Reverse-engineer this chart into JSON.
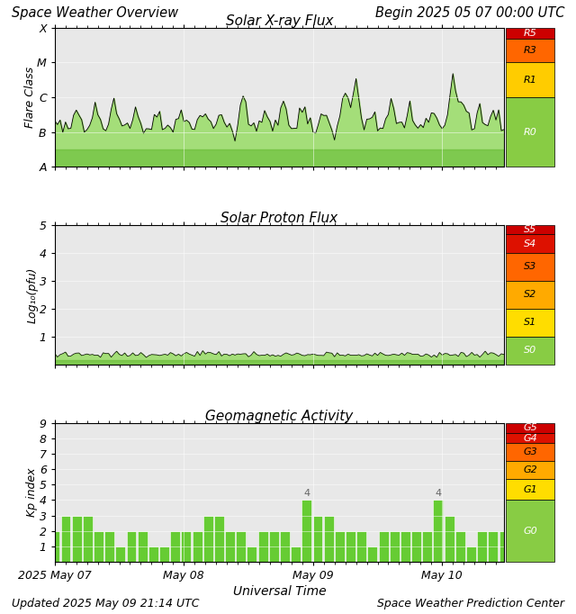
{
  "title_left": "Space Weather Overview",
  "title_right": "Begin 2025 05 07 00:00 UTC",
  "footer_left": "Updated 2025 May 09 21:14 UTC",
  "footer_right": "Space Weather Prediction Center",
  "xlabel": "Universal Time",
  "xtick_labels": [
    "2025 May 07",
    "May 08",
    "May 09",
    "May 10"
  ],
  "xtick_positions": [
    0,
    48,
    96,
    144
  ],
  "xray_title": "Solar X-ray Flux",
  "xray_ytick_labels": [
    "A",
    "B",
    "C",
    "M",
    "X"
  ],
  "xray_ytick_positions": [
    1,
    2,
    3,
    4,
    5
  ],
  "xray_ylabel": "Flare Class",
  "xray_bg_color": "#e8e8e8",
  "proton_title": "Solar Proton Flux",
  "proton_ytick_labels": [
    "1",
    "2",
    "3",
    "4",
    "5"
  ],
  "proton_ytick_positions": [
    1,
    2,
    3,
    4,
    5
  ],
  "proton_ylabel": "Log₁₀(pfu)",
  "proton_bg_color": "#e8e8e8",
  "geo_title": "Geomagnetic Activity",
  "geo_ylabel": "Kp index",
  "geo_ytick_labels": [
    "1",
    "2",
    "3",
    "4",
    "5",
    "6",
    "7",
    "8",
    "9"
  ],
  "geo_ytick_positions": [
    1,
    2,
    3,
    4,
    5,
    6,
    7,
    8,
    9
  ],
  "geo_bg_color": "#e8e8e8",
  "bar_color": "#66cc33",
  "line_color": "black",
  "fill_green": "#99dd66",
  "fill_green_dark": "#66bb33",
  "r_bands": [
    [
      4.67,
      5.0,
      "#cc0000",
      "R5",
      "white"
    ],
    [
      4.0,
      4.67,
      "#ff6600",
      "R3",
      "black"
    ],
    [
      3.0,
      4.0,
      "#ffcc00",
      "R1",
      "black"
    ],
    [
      1.0,
      3.0,
      "#88cc44",
      "R0",
      "white"
    ]
  ],
  "s_bands": [
    [
      4.67,
      5.0,
      "#cc0000",
      "S5",
      "white"
    ],
    [
      4.0,
      4.67,
      "#dd1100",
      "S4",
      "white"
    ],
    [
      3.0,
      4.0,
      "#ff6600",
      "S3",
      "black"
    ],
    [
      2.0,
      3.0,
      "#ffaa00",
      "S2",
      "black"
    ],
    [
      1.0,
      2.0,
      "#ffdd00",
      "S1",
      "black"
    ],
    [
      0.0,
      1.0,
      "#88cc44",
      "S0",
      "white"
    ]
  ],
  "g_bands": [
    [
      8.34,
      9.0,
      "#cc0000",
      "G5",
      "white"
    ],
    [
      7.67,
      8.34,
      "#dd1100",
      "G4",
      "white"
    ],
    [
      6.5,
      7.67,
      "#ff6600",
      "G3",
      "black"
    ],
    [
      5.34,
      6.5,
      "#ffaa00",
      "G2",
      "black"
    ],
    [
      4.0,
      5.34,
      "#ffdd00",
      "G1",
      "black"
    ],
    [
      0.0,
      4.0,
      "#88cc44",
      "G0",
      "white"
    ]
  ],
  "kp_values": [
    2,
    3,
    3,
    3,
    2,
    2,
    1,
    2,
    2,
    1,
    1,
    2,
    2,
    2,
    3,
    3,
    2,
    2,
    1,
    2,
    2,
    2,
    1,
    4,
    3,
    3,
    2,
    2,
    2,
    1,
    2,
    2,
    2,
    2,
    2,
    4,
    3,
    2,
    1,
    2,
    2,
    2
  ]
}
